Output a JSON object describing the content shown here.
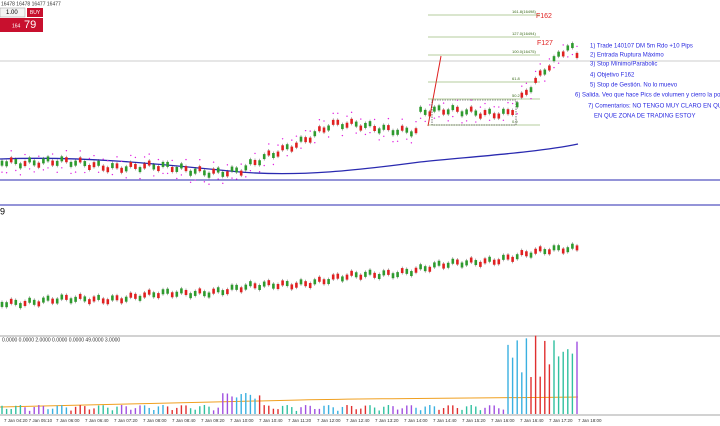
{
  "toolbar": {
    "quote": "16478 16478 16477 16477",
    "lot": "1.00",
    "buy": "BUY",
    "price_small": "164",
    "price_big": "79"
  },
  "fib": {
    "labels": [
      "161.8(16498)",
      "127.0(16494)",
      "100.0(16475)",
      "61.8",
      "50.2",
      "0.0"
    ],
    "f162": "F162",
    "f127": "F127"
  },
  "notes": [
    "1) Trade 140107 DM 5m Rdo +10 Pips",
    "2) Entrada Ruptura Máximo",
    "3) Stop Mínimo/Parabolic",
    "4) Objetivo F162",
    "5) Stop de Gestión. No lo muevo",
    "6) Salida. Veo que hace Pics de volumen y cierro la pos",
    "7) Comentarios: NO TENGO MUY CLARO EN QUE",
    "EN QUE ZONA DE TRADING ESTOY"
  ],
  "panel2": {
    "label": "9"
  },
  "volume": {
    "header": "0.0000 0.0000 2.0000 0.0000 0.0000 49.0000 3.0000"
  },
  "xaxis": [
    "7 Jan 04:20",
    "7 Jan 05:10",
    "7 Jan 06:00",
    "7 Jan 06:40",
    "7 Jan 07:20",
    "7 Jan 08:00",
    "7 Jan 08:40",
    "7 Jan 09:20",
    "7 Jan 10:00",
    "7 Jan 10:40",
    "7 Jan 11:20",
    "7 Jan 12:00",
    "7 Jan 12:40",
    "7 Jan 13:20",
    "7 Jan 14:00",
    "7 Jan 14:40",
    "7 Jan 15:20",
    "7 Jan 16:00",
    "7 Jan 16:40",
    "7 Jan 17:20",
    "7 Jan 18:00"
  ]
}
